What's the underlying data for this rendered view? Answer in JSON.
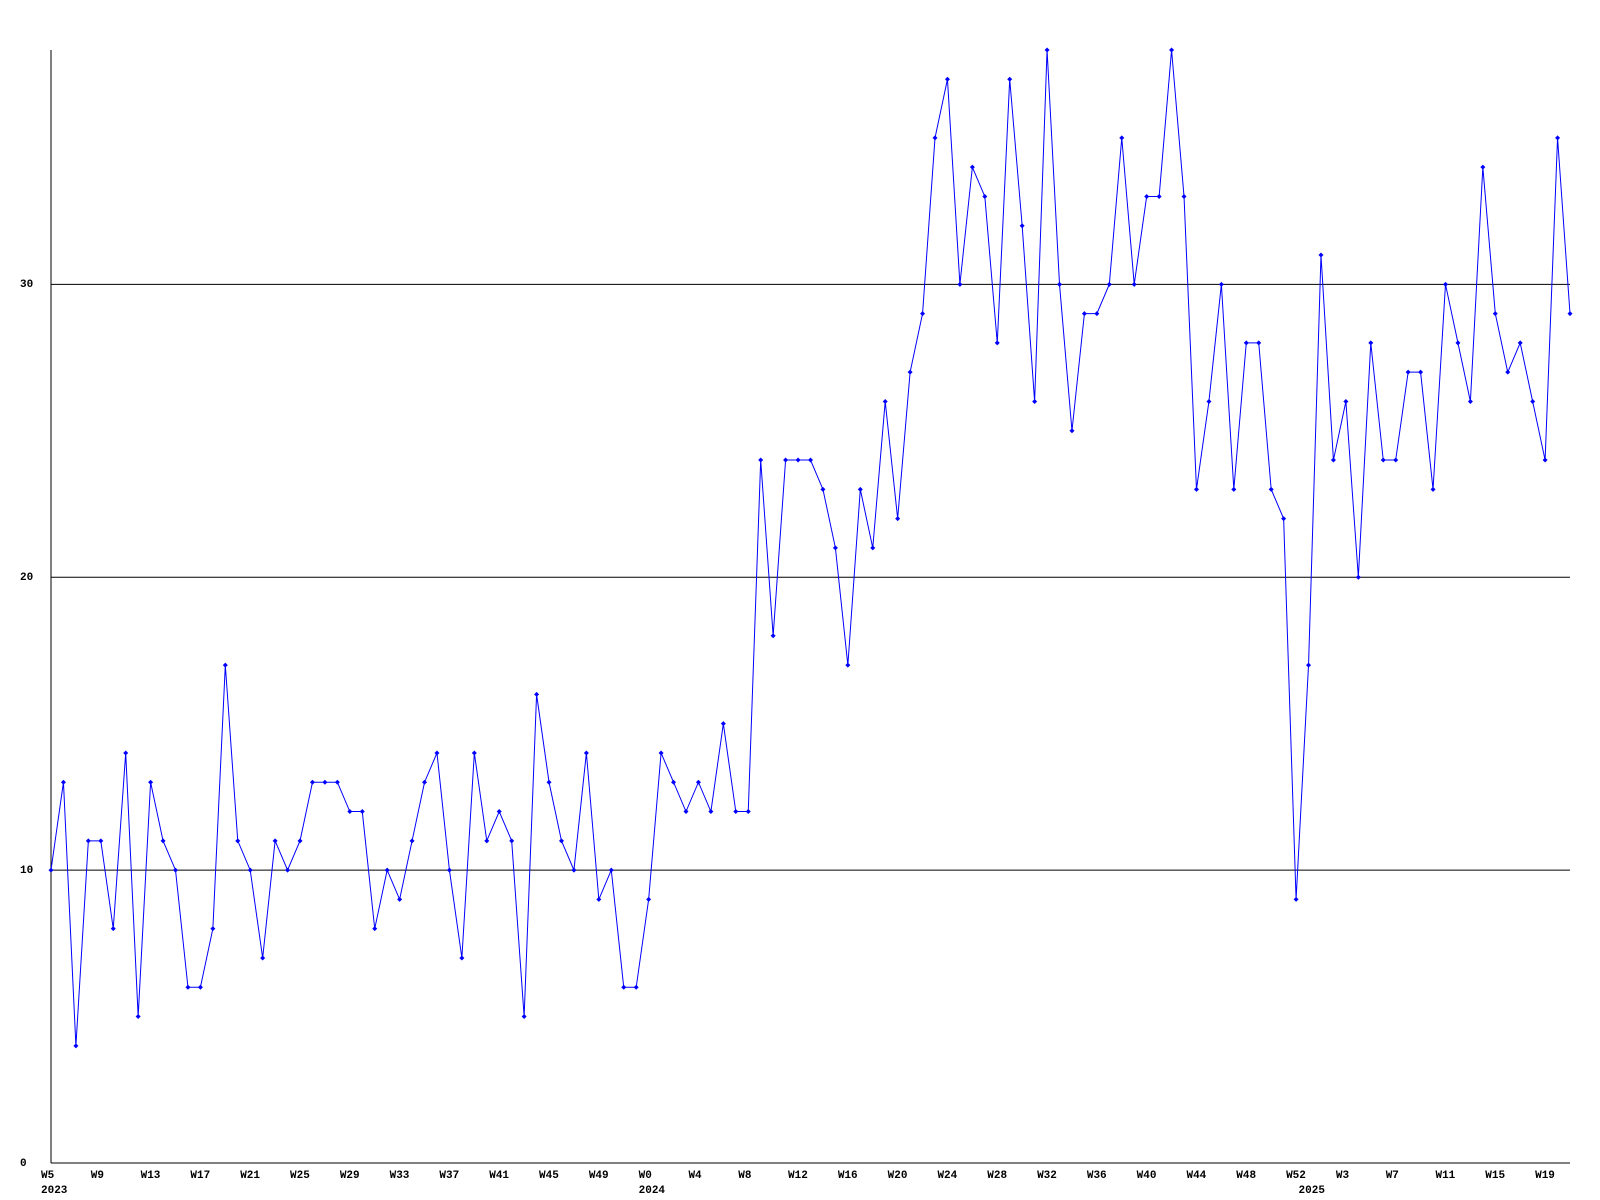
{
  "chart_data": {
    "type": "line",
    "categories": [
      "W5",
      null,
      null,
      null,
      "W9",
      null,
      null,
      null,
      "W13",
      null,
      null,
      null,
      "W17",
      null,
      null,
      null,
      "W21",
      null,
      null,
      null,
      "W25",
      null,
      null,
      null,
      "W29",
      null,
      null,
      null,
      "W33",
      null,
      null,
      null,
      "W37",
      null,
      null,
      null,
      "W41",
      null,
      null,
      null,
      "W45",
      null,
      null,
      null,
      "W49",
      null,
      null,
      null,
      "W0",
      null,
      null,
      null,
      "W4",
      null,
      null,
      null,
      "W8",
      null,
      null,
      null,
      "W12",
      null,
      null,
      null,
      "W16",
      null,
      null,
      null,
      "W20",
      null,
      null,
      null,
      "W24",
      null,
      null,
      null,
      "W28",
      null,
      null,
      null,
      "W32",
      null,
      null,
      null,
      "W36",
      null,
      null,
      null,
      "W40",
      null,
      null,
      null,
      "W44",
      null,
      null,
      null,
      "W48",
      null,
      null,
      null,
      "W52",
      null,
      null,
      null,
      "W3",
      null,
      null,
      null,
      "W7",
      null,
      null,
      null,
      "W11",
      null,
      null,
      null,
      "W15",
      null,
      null,
      null,
      "W19",
      null,
      null
    ],
    "years": [
      "2023",
      null,
      null,
      null,
      null,
      null,
      null,
      null,
      null,
      null,
      null,
      null,
      null,
      null,
      null,
      null,
      null,
      null,
      null,
      null,
      null,
      null,
      null,
      null,
      null,
      null,
      null,
      null,
      null,
      null,
      null,
      null,
      null,
      null,
      null,
      null,
      null,
      null,
      null,
      null,
      null,
      null,
      null,
      null,
      null,
      null,
      null,
      null,
      "2024",
      null,
      null,
      null,
      null,
      null,
      null,
      null,
      null,
      null,
      null,
      null,
      null,
      null,
      null,
      null,
      null,
      null,
      null,
      null,
      null,
      null,
      null,
      null,
      null,
      null,
      null,
      null,
      null,
      null,
      null,
      null,
      null,
      null,
      null,
      null,
      null,
      null,
      null,
      null,
      null,
      null,
      null,
      null,
      null,
      null,
      null,
      null,
      null,
      null,
      null,
      null,
      null,
      "2025",
      null,
      null,
      null,
      null,
      null,
      null,
      null,
      null,
      null,
      null,
      null,
      null,
      null,
      null,
      null,
      null,
      null,
      null,
      null,
      null,
      null
    ],
    "series": [
      {
        "color": "#0000ff",
        "values": [
          10,
          13,
          4,
          11,
          11,
          8,
          14,
          5,
          13,
          11,
          10,
          6,
          6,
          8,
          17,
          11,
          10,
          7,
          11,
          10,
          11,
          13,
          13,
          13,
          12,
          12,
          8,
          10,
          9,
          11,
          13,
          14,
          10,
          7,
          14,
          11,
          12,
          11,
          5,
          16,
          13,
          11,
          10,
          14,
          9,
          10,
          6,
          6,
          9,
          14,
          13,
          12,
          13,
          12,
          15,
          12,
          12,
          24,
          18,
          24,
          24,
          24,
          23,
          21,
          17,
          23,
          21,
          26,
          22,
          27,
          29,
          35,
          37,
          30,
          34,
          33,
          28,
          37,
          32,
          26,
          38,
          30,
          25,
          29,
          29,
          30,
          35,
          30,
          33,
          33,
          38,
          33,
          23,
          26,
          30,
          23,
          28,
          28,
          23,
          22,
          9,
          17,
          31,
          24,
          26,
          20,
          28,
          24,
          24,
          27,
          27,
          23,
          30,
          28,
          26,
          34,
          29,
          27,
          28,
          26,
          24,
          35,
          29
        ]
      }
    ],
    "ylim": [
      0,
      38
    ],
    "yticks": [
      0,
      10,
      20,
      30
    ],
    "grid": true
  }
}
